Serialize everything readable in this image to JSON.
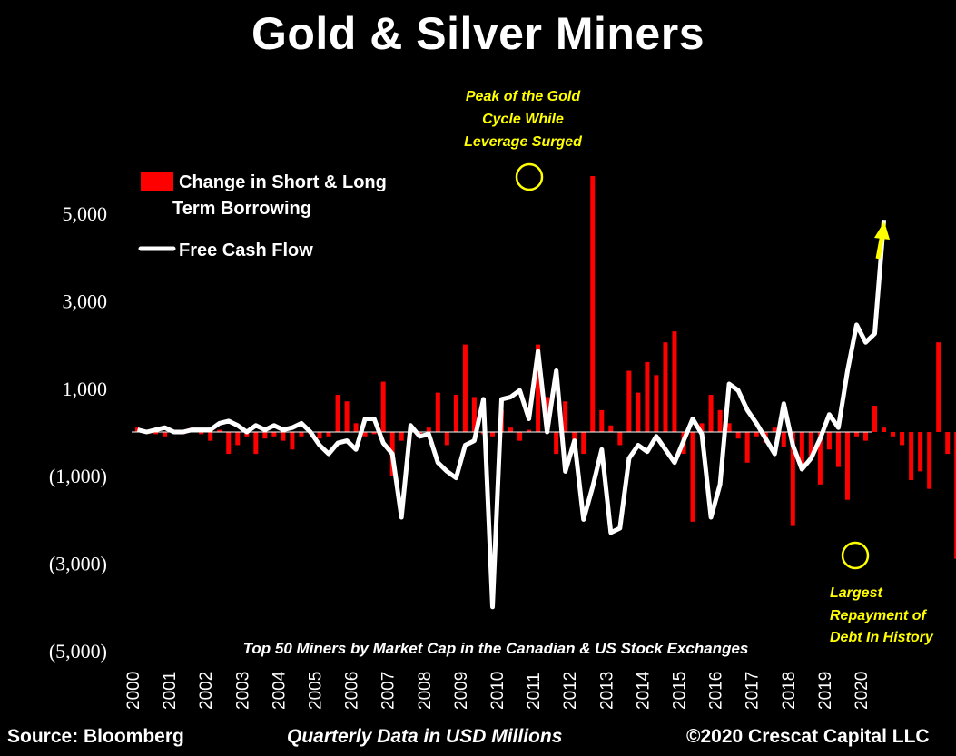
{
  "title": "Gold & Silver Miners",
  "footer": {
    "source": "Source: Bloomberg",
    "note": "Quarterly Data in USD Millions",
    "copyright": "©2020 Crescat Capital LLC"
  },
  "chart_data": {
    "type": "bar",
    "title": "Gold & Silver Miners",
    "subtitle": "Top 50 Miners by Market Cap in the Canadian & US Stock Exchanges",
    "xlabel": "",
    "ylabel": "",
    "ylim": [
      -5000,
      6000
    ],
    "yticks": [
      5000,
      3000,
      1000,
      -1000,
      -3000,
      -5000
    ],
    "ytick_labels": [
      "5,000",
      "3,000",
      "1,000",
      "(1,000)",
      "(3,000)",
      "(5,000)"
    ],
    "xtick_labels": [
      "2000",
      "2001",
      "2002",
      "2003",
      "2004",
      "2005",
      "2006",
      "2007",
      "2008",
      "2009",
      "2010",
      "2011",
      "2012",
      "2013",
      "2014",
      "2015",
      "2016",
      "2017",
      "2018",
      "2019",
      "2020"
    ],
    "grid": false,
    "legend_position": "top-left",
    "colors": {
      "bar": "#ff0000",
      "line": "#ffffff",
      "annotation": "#ffff00"
    },
    "series": [
      {
        "name": "Change in Short & Long Term Borrowing",
        "type": "bar",
        "values": [
          100,
          50,
          -50,
          -100,
          50,
          -50,
          100,
          -50,
          -200,
          50,
          -500,
          -300,
          -100,
          -500,
          -150,
          -100,
          -200,
          -400,
          -100,
          -50,
          -150,
          -100,
          850,
          700,
          200,
          -100,
          -50,
          1150,
          -1000,
          -200,
          100,
          -50,
          100,
          900,
          -300,
          850,
          2000,
          800,
          -50,
          -100,
          500,
          100,
          -200,
          50,
          2000,
          800,
          -500,
          700,
          -400,
          -500,
          5850,
          500,
          150,
          -300,
          1400,
          900,
          1600,
          1300,
          2050,
          2300,
          -500,
          -2050,
          200,
          850,
          500,
          200,
          -150,
          -700,
          -100,
          -250,
          100,
          -350,
          -2150,
          -850,
          -600,
          -1200,
          -400,
          -800,
          -1550,
          -100,
          -200,
          600,
          100,
          -100,
          -300,
          -1100,
          -900,
          -1300,
          2050,
          -500,
          -2900,
          0
        ]
      },
      {
        "name": "Free Cash Flow",
        "type": "line",
        "values": [
          50,
          0,
          50,
          100,
          0,
          0,
          50,
          50,
          50,
          200,
          250,
          150,
          0,
          150,
          50,
          150,
          50,
          100,
          200,
          0,
          -300,
          -500,
          -250,
          -200,
          -400,
          300,
          300,
          -250,
          -500,
          -1950,
          150,
          -100,
          -50,
          -700,
          -900,
          -1050,
          -300,
          -200,
          750,
          -4000,
          750,
          800,
          950,
          300,
          1850,
          0,
          1400,
          -900,
          -200,
          -2000,
          -1250,
          -400,
          -2300,
          -2200,
          -600,
          -300,
          -450,
          -100,
          -400,
          -700,
          -200,
          300,
          -50,
          -1950,
          -1200,
          1100,
          950,
          500,
          200,
          -150,
          -500,
          650,
          -300,
          -850,
          -600,
          -150,
          400,
          100,
          1400,
          2450,
          2050,
          2250,
          4850
        ],
        "x_offset": 0
      }
    ],
    "annotations": [
      {
        "text": [
          "Peak of the Gold",
          "Cycle While",
          "Leverage Surged"
        ],
        "color": "#ffff00"
      },
      {
        "text": [
          "Largest",
          "Repayment of",
          "Debt  In History"
        ],
        "color": "#ffff00"
      }
    ]
  },
  "legend": [
    {
      "label_line1": "Change in Short & Long",
      "label_line2": "Term Borrowing",
      "color": "#ff0000"
    },
    {
      "label_line1": "Free Cash Flow",
      "label_line2": "",
      "color": "#ffffff"
    }
  ]
}
